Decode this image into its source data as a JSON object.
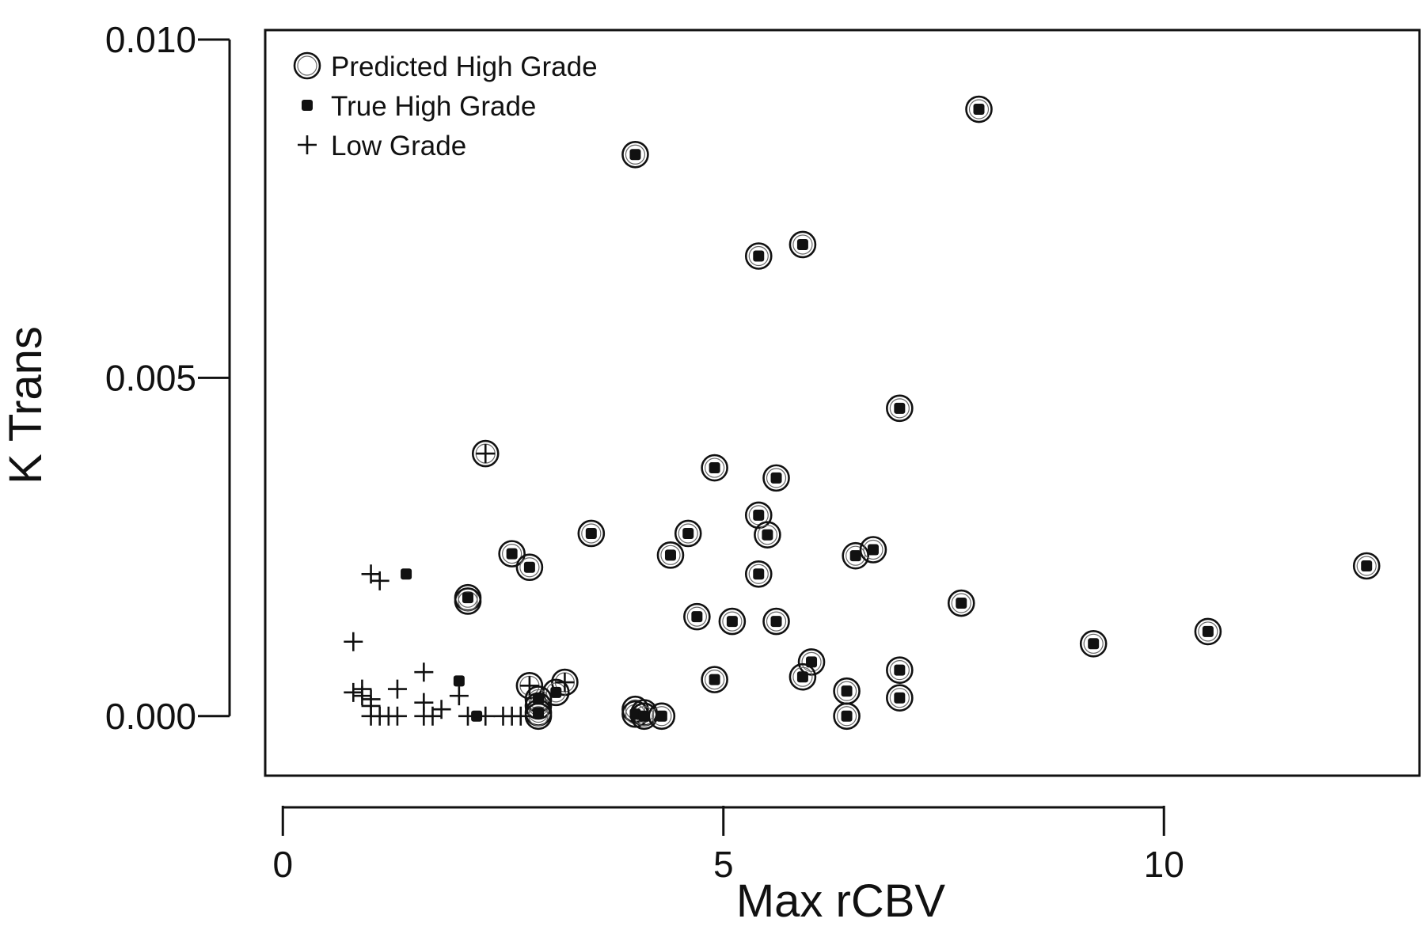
{
  "chart_data": {
    "type": "scatter",
    "title": "",
    "xlabel": "Max rCBV",
    "ylabel": "K Trans",
    "xlim": [
      -0.2,
      12.9
    ],
    "ylim": [
      -0.00088,
      0.01014
    ],
    "xticks": [
      0,
      5,
      10
    ],
    "xtick_labels": [
      "0",
      "5",
      "10"
    ],
    "yticks": [
      0.0,
      0.005,
      0.01
    ],
    "ytick_labels": [
      "0.000",
      "0.005",
      "0.010"
    ],
    "grid": false,
    "legend_position": "top-left",
    "legend": [
      {
        "label": "Predicted High Grade",
        "marker": "open-circle"
      },
      {
        "label": "True High Grade",
        "marker": "filled-square"
      },
      {
        "label": "Low Grade",
        "marker": "plus"
      }
    ],
    "series": [
      {
        "name": "Predicted High Grade",
        "marker": "open-circle",
        "points": [
          [
            7.9,
            0.00897
          ],
          [
            4.0,
            0.0083
          ],
          [
            5.4,
            0.0068
          ],
          [
            5.9,
            0.00697
          ],
          [
            7.0,
            0.00455
          ],
          [
            2.3,
            0.00388
          ],
          [
            4.9,
            0.00367
          ],
          [
            5.6,
            0.00352
          ],
          [
            5.4,
            0.00297
          ],
          [
            5.5,
            0.00268
          ],
          [
            3.5,
            0.0027
          ],
          [
            4.6,
            0.0027
          ],
          [
            2.6,
            0.0024
          ],
          [
            2.8,
            0.0022
          ],
          [
            4.4,
            0.00238
          ],
          [
            6.5,
            0.00237
          ],
          [
            6.7,
            0.00246
          ],
          [
            5.4,
            0.0021
          ],
          [
            12.3,
            0.00222
          ],
          [
            2.1,
            0.00175
          ],
          [
            2.1,
            0.0017
          ],
          [
            7.7,
            0.00167
          ],
          [
            4.7,
            0.00147
          ],
          [
            5.1,
            0.0014
          ],
          [
            5.6,
            0.0014
          ],
          [
            10.5,
            0.00125
          ],
          [
            9.2,
            0.00107
          ],
          [
            6.0,
            0.0008
          ],
          [
            5.9,
            0.00058
          ],
          [
            4.9,
            0.00054
          ],
          [
            7.0,
            0.00068
          ],
          [
            7.0,
            0.00027
          ],
          [
            6.4,
            0.00037
          ],
          [
            6.4,
            0.0
          ],
          [
            3.2,
            0.0005
          ],
          [
            3.1,
            0.00035
          ],
          [
            2.8,
            0.00045
          ],
          [
            2.9,
            0.00025
          ],
          [
            2.9,
            0.00015
          ],
          [
            2.9,
            5e-05
          ],
          [
            2.9,
            0.0
          ],
          [
            4.0,
            0.0001
          ],
          [
            4.0,
            3e-05
          ],
          [
            4.1,
            5e-05
          ],
          [
            4.1,
            0.0
          ],
          [
            4.3,
            0.0
          ]
        ]
      },
      {
        "name": "True High Grade",
        "marker": "filled-square",
        "points": [
          [
            7.9,
            0.00897
          ],
          [
            4.0,
            0.0083
          ],
          [
            5.4,
            0.0068
          ],
          [
            5.9,
            0.00697
          ],
          [
            7.0,
            0.00455
          ],
          [
            4.9,
            0.00367
          ],
          [
            5.6,
            0.00352
          ],
          [
            5.4,
            0.00297
          ],
          [
            5.5,
            0.00268
          ],
          [
            3.5,
            0.0027
          ],
          [
            4.6,
            0.0027
          ],
          [
            2.6,
            0.0024
          ],
          [
            2.8,
            0.0022
          ],
          [
            4.4,
            0.00238
          ],
          [
            6.5,
            0.00237
          ],
          [
            6.7,
            0.00246
          ],
          [
            5.4,
            0.0021
          ],
          [
            12.3,
            0.00222
          ],
          [
            2.1,
            0.00175
          ],
          [
            7.7,
            0.00167
          ],
          [
            4.7,
            0.00147
          ],
          [
            5.1,
            0.0014
          ],
          [
            5.6,
            0.0014
          ],
          [
            10.5,
            0.00125
          ],
          [
            9.2,
            0.00107
          ],
          [
            6.0,
            0.0008
          ],
          [
            5.9,
            0.00058
          ],
          [
            4.9,
            0.00054
          ],
          [
            7.0,
            0.00068
          ],
          [
            7.0,
            0.00027
          ],
          [
            6.4,
            0.00037
          ],
          [
            6.4,
            0.0
          ],
          [
            1.4,
            0.0021
          ],
          [
            2.0,
            0.00052
          ],
          [
            2.2,
            0.0
          ],
          [
            3.1,
            0.00035
          ],
          [
            2.9,
            0.00025
          ],
          [
            2.9,
            5e-05
          ],
          [
            4.0,
            3e-05
          ],
          [
            4.1,
            0.0
          ],
          [
            4.3,
            0.0
          ]
        ]
      },
      {
        "name": "Low Grade",
        "marker": "plus",
        "points": [
          [
            2.3,
            0.00388
          ],
          [
            1.0,
            0.0021
          ],
          [
            1.1,
            0.002
          ],
          [
            0.8,
            0.0011
          ],
          [
            0.8,
            0.00035
          ],
          [
            0.9,
            0.0004
          ],
          [
            0.9,
            0.0003
          ],
          [
            1.0,
            0.00025
          ],
          [
            1.0,
            0.00015
          ],
          [
            1.0,
            0.0
          ],
          [
            1.1,
            0.0
          ],
          [
            1.2,
            0.0
          ],
          [
            1.3,
            0.0
          ],
          [
            1.3,
            0.0004
          ],
          [
            1.6,
            0.00065
          ],
          [
            1.6,
            0.0
          ],
          [
            1.6,
            0.0002
          ],
          [
            1.7,
            0.0
          ],
          [
            1.8,
            0.0001
          ],
          [
            2.0,
            0.0003
          ],
          [
            2.1,
            0.0
          ],
          [
            2.3,
            0.0
          ],
          [
            2.5,
            0.0
          ],
          [
            2.6,
            0.0
          ],
          [
            2.7,
            0.0
          ],
          [
            2.8,
            0.00045
          ],
          [
            3.2,
            0.0005
          ]
        ]
      }
    ]
  }
}
